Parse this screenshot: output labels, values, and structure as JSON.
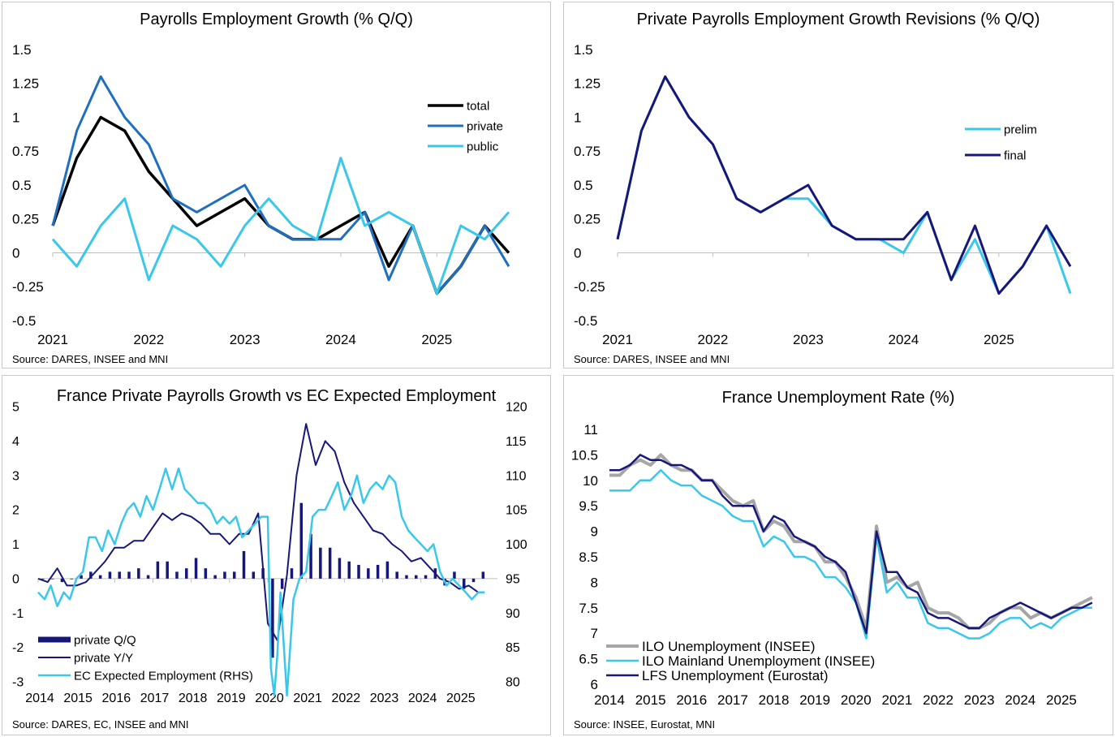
{
  "chart_data": [
    {
      "type": "line",
      "title": "Payrolls Employment Growth  (% Q/Q)",
      "source": "Source: DARES, INSEE and MNI",
      "ylim": [
        -0.5,
        1.5
      ],
      "yticks": [
        "1.5",
        "1.25",
        "1",
        "0.75",
        "0.5",
        "0.25",
        "0",
        "-0.25",
        "-0.5"
      ],
      "xlim": [
        2021,
        2025.75
      ],
      "xticks": [
        "2021",
        "2022",
        "2023",
        "2024",
        "2025"
      ],
      "legend": "right",
      "x": [
        2021,
        2021.25,
        2021.5,
        2021.75,
        2022,
        2022.25,
        2022.5,
        2022.75,
        2023,
        2023.25,
        2023.5,
        2023.75,
        2024,
        2024.25,
        2024.5,
        2024.75,
        2025,
        2025.25,
        2025.5,
        2025.75
      ],
      "series": [
        {
          "name": "total",
          "color": "#000000",
          "width": 3.5,
          "values": [
            0.2,
            0.7,
            1.0,
            0.9,
            0.6,
            0.4,
            0.2,
            0.3,
            0.4,
            0.2,
            0.1,
            0.1,
            0.2,
            0.3,
            -0.1,
            0.2,
            -0.3,
            -0.1,
            0.2,
            0.0
          ]
        },
        {
          "name": "private",
          "color": "#1f6fbf",
          "width": 3,
          "values": [
            0.2,
            0.9,
            1.3,
            1.0,
            0.8,
            0.4,
            0.3,
            0.4,
            0.5,
            0.2,
            0.1,
            0.1,
            0.1,
            0.3,
            -0.2,
            0.2,
            -0.3,
            -0.1,
            0.2,
            -0.1
          ]
        },
        {
          "name": "public",
          "color": "#3ac8ea",
          "width": 3,
          "values": [
            0.1,
            -0.1,
            0.2,
            0.4,
            -0.2,
            0.2,
            0.1,
            -0.1,
            0.2,
            0.4,
            0.2,
            0.1,
            0.7,
            0.2,
            0.3,
            0.2,
            -0.3,
            0.2,
            0.1,
            0.3
          ]
        }
      ]
    },
    {
      "type": "line",
      "title": "Private Payrolls Employment Growth Revisions (% Q/Q)",
      "source": "Source: DARES, INSEE and MNI",
      "ylim": [
        -0.5,
        1.5
      ],
      "yticks": [
        "1.5",
        "1.25",
        "1",
        "0.75",
        "0.5",
        "0.25",
        "0",
        "-0.25",
        "-0.5"
      ],
      "xlim": [
        2021,
        2025.75
      ],
      "xticks": [
        "2021",
        "2022",
        "2023",
        "2024",
        "2025"
      ],
      "legend": "right",
      "x": [
        2021,
        2021.25,
        2021.5,
        2021.75,
        2022,
        2022.25,
        2022.5,
        2022.75,
        2023,
        2023.25,
        2023.5,
        2023.75,
        2024,
        2024.25,
        2024.5,
        2024.75,
        2025,
        2025.25,
        2025.5,
        2025.75
      ],
      "series": [
        {
          "name": "prelim",
          "color": "#3ac8ea",
          "width": 3,
          "values": [
            0.1,
            0.9,
            1.3,
            1.0,
            0.8,
            0.4,
            0.3,
            0.4,
            0.4,
            0.2,
            0.1,
            0.1,
            0.0,
            0.3,
            -0.2,
            0.1,
            -0.3,
            -0.1,
            0.2,
            -0.3
          ]
        },
        {
          "name": "final",
          "color": "#17177a",
          "width": 3,
          "values": [
            0.1,
            0.9,
            1.3,
            1.0,
            0.8,
            0.4,
            0.3,
            0.4,
            0.5,
            0.2,
            0.1,
            0.1,
            0.1,
            0.3,
            -0.2,
            0.2,
            -0.3,
            -0.1,
            0.2,
            -0.1
          ]
        }
      ]
    },
    {
      "type": "line",
      "title": "France Private Payrolls Growth vs EC Expected Employment",
      "source": "Source: DARES, EC, INSEE and MNI",
      "ylim": [
        -3,
        5
      ],
      "yticks": [
        "5",
        "4",
        "3",
        "2",
        "1",
        "0",
        "-1",
        "-2",
        "-3"
      ],
      "y2lim": [
        80,
        120
      ],
      "y2ticks": [
        "120",
        "115",
        "110",
        "105",
        "100",
        "95",
        "90",
        "85",
        "80"
      ],
      "xlim": [
        2014,
        2026
      ],
      "xticks": [
        "2014",
        "2015",
        "2016",
        "2017",
        "2018",
        "2019",
        "2020",
        "2021",
        "2022",
        "2023",
        "2024",
        "2025"
      ],
      "legend": "bottom-left",
      "bars": {
        "name": "private Q/Q",
        "color": "#17177a",
        "x": [
          2014,
          2014.25,
          2014.5,
          2014.75,
          2015,
          2015.25,
          2015.5,
          2015.75,
          2016,
          2016.25,
          2016.5,
          2016.75,
          2017,
          2017.25,
          2017.5,
          2017.75,
          2018,
          2018.25,
          2018.5,
          2018.75,
          2019,
          2019.25,
          2019.5,
          2019.75,
          2020,
          2020.25,
          2020.5,
          2020.75,
          2021,
          2021.25,
          2021.5,
          2021.75,
          2022,
          2022.25,
          2022.5,
          2022.75,
          2023,
          2023.25,
          2023.5,
          2023.75,
          2024,
          2024.25,
          2024.5,
          2024.75,
          2025,
          2025.25,
          2025.5
        ],
        "values": [
          0.0,
          0.0,
          -0.1,
          0.0,
          0.1,
          0.2,
          0.1,
          0.2,
          0.2,
          0.2,
          0.3,
          0.1,
          0.5,
          0.5,
          0.2,
          0.3,
          0.6,
          0.3,
          0.1,
          0.2,
          0.2,
          0.8,
          0.2,
          0.3,
          -2.3,
          -0.3,
          0.3,
          2.2,
          1.3,
          0.9,
          0.9,
          0.6,
          0.5,
          0.4,
          0.3,
          0.4,
          0.5,
          0.2,
          0.1,
          0.1,
          0.1,
          0.3,
          -0.2,
          0.2,
          -0.3,
          -0.1,
          0.2
        ]
      },
      "series": [
        {
          "name": "private Y/Y",
          "color": "#17177a",
          "width": 2,
          "axis": "left",
          "x": [
            2014,
            2014.25,
            2014.5,
            2014.75,
            2015,
            2015.25,
            2015.5,
            2015.75,
            2016,
            2016.25,
            2016.5,
            2016.75,
            2017,
            2017.25,
            2017.5,
            2017.75,
            2018,
            2018.25,
            2018.5,
            2018.75,
            2019,
            2019.25,
            2019.5,
            2019.75,
            2020,
            2020.25,
            2020.5,
            2020.75,
            2021,
            2021.25,
            2021.5,
            2021.75,
            2022,
            2022.25,
            2022.5,
            2022.75,
            2023,
            2023.25,
            2023.5,
            2023.75,
            2024,
            2024.25,
            2024.5,
            2024.75,
            2025,
            2025.25,
            2025.5
          ],
          "values": [
            0.0,
            -0.1,
            0.3,
            -0.2,
            -0.2,
            -0.1,
            0.2,
            0.5,
            0.9,
            0.9,
            1.1,
            1.1,
            1.5,
            1.9,
            1.7,
            1.9,
            1.8,
            1.6,
            1.3,
            1.3,
            1.0,
            1.3,
            1.3,
            1.9,
            -1.3,
            -1.8,
            0.1,
            3.0,
            4.5,
            3.3,
            4.0,
            3.7,
            2.8,
            2.2,
            1.8,
            1.4,
            1.3,
            1.0,
            0.8,
            0.5,
            0.6,
            0.3,
            0.0,
            -0.1,
            -0.3,
            -0.2,
            -0.4
          ]
        },
        {
          "name": "EC Expected Employment (RHS)",
          "color": "#3ac8ea",
          "width": 2.5,
          "axis": "right",
          "x": [
            2014,
            2014.17,
            2014.33,
            2014.5,
            2014.67,
            2014.83,
            2015,
            2015.17,
            2015.33,
            2015.5,
            2015.67,
            2015.83,
            2016,
            2016.17,
            2016.33,
            2016.5,
            2016.67,
            2016.83,
            2017,
            2017.17,
            2017.33,
            2017.5,
            2017.67,
            2017.83,
            2018,
            2018.17,
            2018.33,
            2018.5,
            2018.67,
            2018.83,
            2019,
            2019.17,
            2019.33,
            2019.5,
            2019.67,
            2019.83,
            2020,
            2020.08,
            2020.17,
            2020.25,
            2020.33,
            2020.5,
            2020.67,
            2020.83,
            2021,
            2021.17,
            2021.33,
            2021.5,
            2021.67,
            2021.83,
            2022,
            2022.17,
            2022.33,
            2022.5,
            2022.67,
            2022.83,
            2023,
            2023.17,
            2023.33,
            2023.5,
            2023.67,
            2023.83,
            2024,
            2024.17,
            2024.33,
            2024.5,
            2024.67,
            2024.83,
            2025,
            2025.17,
            2025.33,
            2025.5,
            2025.67
          ],
          "values": [
            93,
            92,
            94,
            91,
            93,
            92,
            95,
            96,
            101,
            101,
            99,
            102,
            100,
            103,
            105,
            106,
            104,
            107,
            105,
            108,
            111,
            108,
            111,
            108,
            107,
            106,
            106,
            105,
            103,
            104,
            103,
            104,
            101,
            102,
            103,
            104,
            104,
            82,
            78,
            84,
            93,
            78,
            92,
            95,
            96,
            104,
            105,
            105,
            107,
            109,
            105,
            107,
            110,
            106,
            108,
            109,
            108,
            110,
            109,
            104,
            102,
            101,
            100,
            99,
            100,
            96,
            94,
            95,
            94,
            93,
            92,
            93,
            93
          ]
        }
      ]
    },
    {
      "type": "line",
      "title": "France Unemployment Rate (%)",
      "source": "Source: INSEE, Eurostat, MNI",
      "ylim": [
        6,
        11
      ],
      "yticks": [
        "11",
        "10.5",
        "10",
        "9.5",
        "9",
        "8.5",
        "8",
        "7.5",
        "7",
        "6.5",
        "6"
      ],
      "xlim": [
        2014,
        2025.85
      ],
      "xticks": [
        "2014",
        "2015",
        "2016",
        "2017",
        "2018",
        "2019",
        "2020",
        "2021",
        "2022",
        "2023",
        "2024",
        "2025"
      ],
      "legend": "bottom-left",
      "x": [
        2014,
        2014.25,
        2014.5,
        2014.75,
        2015,
        2015.25,
        2015.5,
        2015.75,
        2016,
        2016.25,
        2016.5,
        2016.75,
        2017,
        2017.25,
        2017.5,
        2017.75,
        2018,
        2018.25,
        2018.5,
        2018.75,
        2019,
        2019.25,
        2019.5,
        2019.75,
        2020,
        2020.25,
        2020.5,
        2020.75,
        2021,
        2021.25,
        2021.5,
        2021.75,
        2022,
        2022.25,
        2022.5,
        2022.75,
        2023,
        2023.25,
        2023.5,
        2023.75,
        2024,
        2024.25,
        2024.5,
        2024.75,
        2025,
        2025.25,
        2025.5,
        2025.75
      ],
      "series": [
        {
          "name": "ILO Unemployment (INSEE)",
          "color": "#a6a6a6",
          "width": 4,
          "values": [
            10.1,
            10.1,
            10.3,
            10.4,
            10.3,
            10.5,
            10.3,
            10.2,
            10.2,
            10.0,
            10.0,
            9.8,
            9.6,
            9.5,
            9.6,
            9.0,
            9.2,
            9.1,
            8.8,
            8.8,
            8.7,
            8.4,
            8.4,
            8.1,
            7.7,
            7.1,
            9.1,
            8.0,
            8.1,
            7.9,
            8.0,
            7.5,
            7.4,
            7.4,
            7.3,
            7.1,
            7.1,
            7.2,
            7.4,
            7.5,
            7.5,
            7.3,
            7.4,
            7.3,
            7.4,
            7.5,
            7.6,
            7.7
          ]
        },
        {
          "name": "ILO Mainland Unemployment (INSEE)",
          "color": "#3ac8ea",
          "width": 2.5,
          "values": [
            9.8,
            9.8,
            9.8,
            10.0,
            10.0,
            10.2,
            10.0,
            9.9,
            9.9,
            9.7,
            9.6,
            9.5,
            9.3,
            9.2,
            9.2,
            8.7,
            8.9,
            8.8,
            8.5,
            8.5,
            8.4,
            8.1,
            8.1,
            7.9,
            7.6,
            6.9,
            8.9,
            7.8,
            8.0,
            7.7,
            7.7,
            7.2,
            7.1,
            7.1,
            7.0,
            6.9,
            6.9,
            7.0,
            7.2,
            7.3,
            7.3,
            7.1,
            7.2,
            7.1,
            7.3,
            7.4,
            7.5,
            7.5
          ]
        },
        {
          "name": "LFS Unemployment (Eurostat)",
          "color": "#17177a",
          "width": 2.5,
          "values": [
            10.2,
            10.2,
            10.3,
            10.5,
            10.4,
            10.4,
            10.3,
            10.3,
            10.2,
            10.0,
            10.0,
            9.7,
            9.5,
            9.5,
            9.5,
            9.0,
            9.3,
            9.2,
            8.9,
            8.8,
            8.7,
            8.5,
            8.4,
            8.2,
            7.6,
            7.0,
            9.0,
            8.2,
            8.2,
            7.9,
            7.8,
            7.4,
            7.3,
            7.3,
            7.2,
            7.1,
            7.1,
            7.3,
            7.4,
            7.5,
            7.6,
            7.5,
            7.4,
            7.3,
            7.4,
            7.5,
            7.5,
            7.6
          ]
        }
      ]
    }
  ]
}
